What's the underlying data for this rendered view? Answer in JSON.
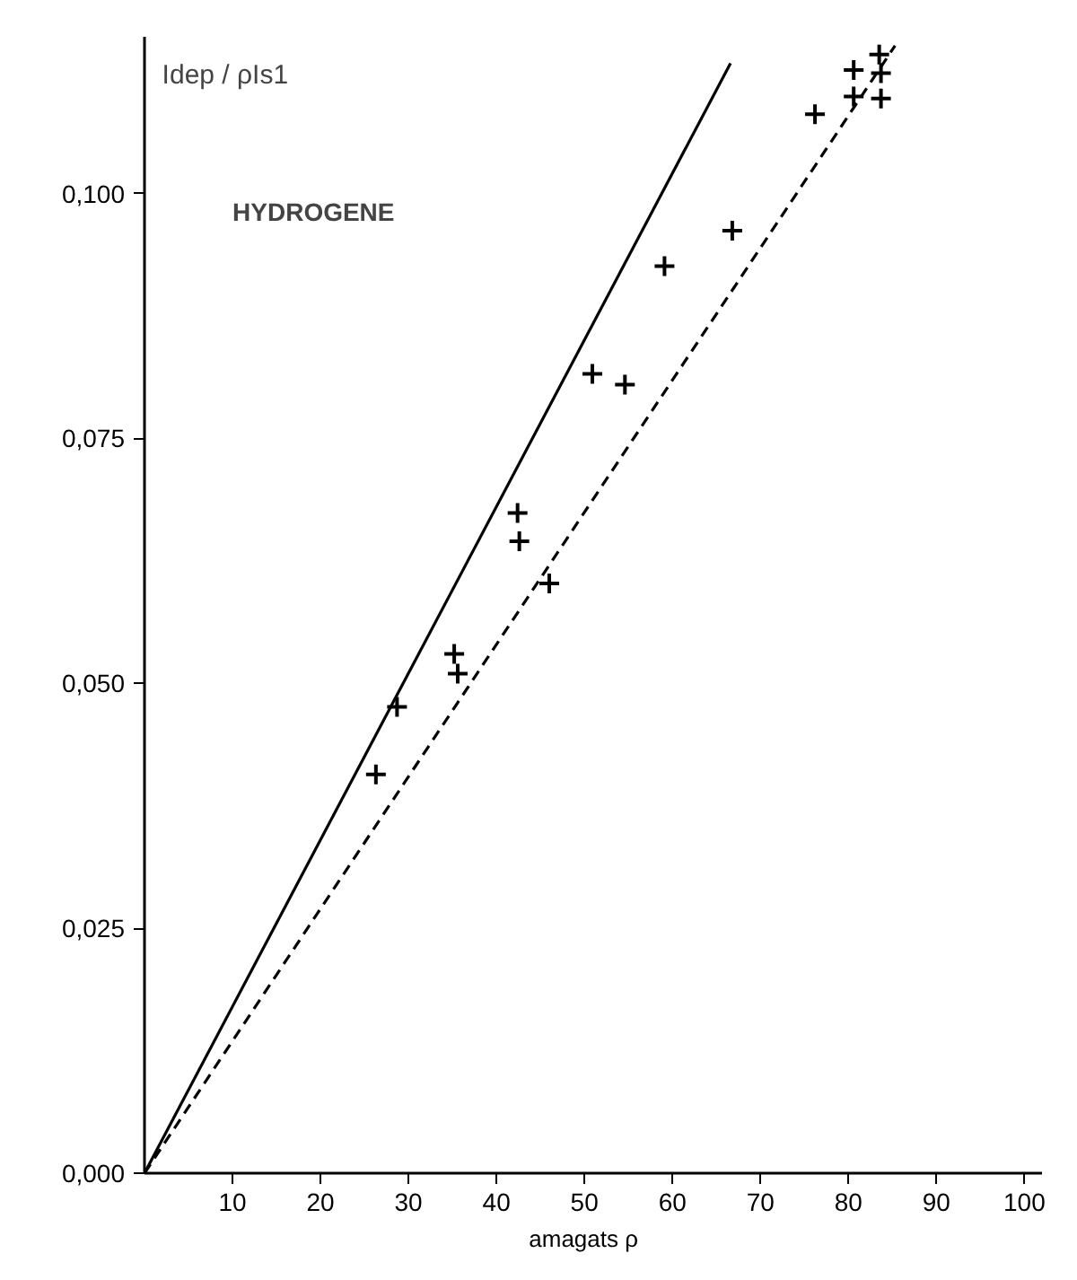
{
  "chart_data": {
    "type": "scatter",
    "title": "HYDROGENE",
    "xlabel": "amagats    ρ",
    "ylabel": "Idep / ρIs1",
    "xlim": [
      0,
      102
    ],
    "ylim": [
      0,
      0.116
    ],
    "xticks": [
      10,
      20,
      30,
      40,
      50,
      60,
      70,
      80,
      90,
      100
    ],
    "yticks": [
      {
        "value": 0,
        "label": "0,000"
      },
      {
        "value": 0.025,
        "label": "0,025"
      },
      {
        "value": 0.05,
        "label": "0,050"
      },
      {
        "value": 0.075,
        "label": "0,075"
      },
      {
        "value": 0.1,
        "label": "0,100"
      }
    ],
    "grid": false,
    "series": [
      {
        "color": "#000000",
        "marker": "cross",
        "x": [
          26.3,
          28.7,
          35.2,
          35.6,
          42.4,
          42.6,
          46.0,
          50.9,
          54.6,
          59.1,
          66.8,
          76.2,
          80.6,
          80.6,
          83.5,
          83.7,
          83.7
        ],
        "values": [
          0.0407,
          0.0476,
          0.053,
          0.051,
          0.0674,
          0.0645,
          0.0602,
          0.0816,
          0.0805,
          0.0926,
          0.0962,
          0.1081,
          0.1126,
          0.1099,
          0.1142,
          0.1123,
          0.1097
        ]
      },
      {
        "type": "line",
        "color": "#000000",
        "line_style": "solid",
        "x": [
          0,
          66.6
        ],
        "values": [
          0,
          0.1133
        ]
      },
      {
        "type": "line",
        "color": "#000000",
        "line_style": "dashed",
        "x": [
          0,
          85.3
        ],
        "values": [
          0,
          0.1151
        ]
      }
    ]
  }
}
